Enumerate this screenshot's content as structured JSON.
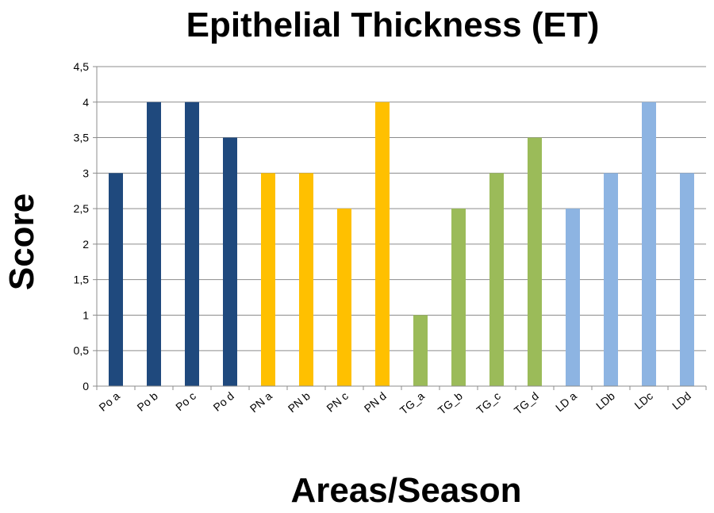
{
  "chart_data": {
    "type": "bar",
    "title": "Epithelial Thickness (ET)",
    "xlabel": "Areas/Season",
    "ylabel": "Score",
    "ylim": [
      0,
      4.5
    ],
    "ytick_step": 0.5,
    "decimal_separator": ",",
    "grid": true,
    "legend": "none",
    "categories": [
      "Po a",
      "Po b",
      "Po c",
      "Po d",
      "PN a",
      "PN b",
      "PN c",
      "PN d",
      "TG_a",
      "TG_b",
      "TG_c",
      "TG_d",
      "LD a",
      "LDb",
      "LDc",
      "LDd"
    ],
    "values": [
      3,
      4,
      4,
      3.5,
      3,
      3,
      2.5,
      4,
      1,
      2.5,
      3,
      3.5,
      2.5,
      3,
      4,
      3
    ],
    "bar_colors": [
      "#1f497d",
      "#1f497d",
      "#1f497d",
      "#1f497d",
      "#ffc000",
      "#ffc000",
      "#ffc000",
      "#ffc000",
      "#9bbb59",
      "#9bbb59",
      "#9bbb59",
      "#9bbb59",
      "#8db4e2",
      "#8db4e2",
      "#8db4e2",
      "#8db4e2"
    ]
  }
}
